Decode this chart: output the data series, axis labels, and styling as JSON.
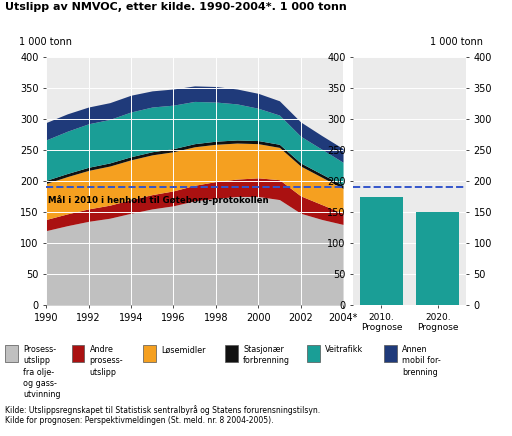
{
  "title": "Utslipp av NMVOC, etter kilde. 1990-2004*. 1 000 tonn",
  "ylabel": "1 000 tonn",
  "years": [
    1990,
    1991,
    1992,
    1993,
    1994,
    1995,
    1996,
    1997,
    1998,
    1999,
    2000,
    2001,
    2002,
    2003,
    2004
  ],
  "series": {
    "Prosess": [
      120,
      128,
      135,
      140,
      148,
      155,
      160,
      168,
      172,
      175,
      175,
      170,
      148,
      138,
      130
    ],
    "Andre": [
      18,
      19,
      20,
      21,
      22,
      23,
      24,
      25,
      27,
      28,
      30,
      32,
      28,
      24,
      18
    ],
    "Losemidler": [
      58,
      60,
      62,
      63,
      64,
      64,
      63,
      62,
      60,
      58,
      55,
      52,
      48,
      44,
      40
    ],
    "Stasjonar": [
      5,
      5,
      5,
      5,
      5,
      5,
      5,
      5,
      5,
      5,
      5,
      5,
      5,
      5,
      5
    ],
    "Veitrafikk": [
      65,
      68,
      70,
      70,
      72,
      72,
      70,
      68,
      63,
      58,
      52,
      47,
      43,
      40,
      37
    ],
    "Annen": [
      28,
      28,
      27,
      27,
      27,
      26,
      26,
      25,
      25,
      24,
      24,
      23,
      23,
      22,
      22
    ]
  },
  "colors": {
    "Prosess": "#c0c0c0",
    "Andre": "#aa1111",
    "Losemidler": "#f5a020",
    "Stasjonar": "#111111",
    "Veitrafikk": "#1a9e96",
    "Annen": "#1f3a7a"
  },
  "goteborg_line": 190,
  "goteborg_label": "Mål i 2010 i henhold til Gøteborg-protokollen",
  "bar_labels": [
    "2010.\nPrognose",
    "2020.\nPrognose"
  ],
  "bar_values": [
    174,
    150
  ],
  "bar_color": "#1a9e96",
  "ylim": [
    0,
    400
  ],
  "yticks": [
    0,
    50,
    100,
    150,
    200,
    250,
    300,
    350,
    400
  ],
  "legend_labels": [
    "Prosess-\nutslipp\nfra olje-\nog gass-\nutvinning",
    "Andre\nprosess-\nutslipp",
    "Løsemidler",
    "Stasjonær\nforbrenning",
    "Veitrafikk",
    "Annen\nmobil for-\nbrenning"
  ],
  "legend_colors": [
    "#c0c0c0",
    "#aa1111",
    "#f5a020",
    "#111111",
    "#1a9e96",
    "#1f3a7a"
  ],
  "source_text": "Kilde: Utslippsregnskapet til Statistisk sentralbyrå og Statens forurensningstilsyn.\nKilde for prognosen: Perspektivmeldingen (St. meld. nr. 8 2004-2005)."
}
